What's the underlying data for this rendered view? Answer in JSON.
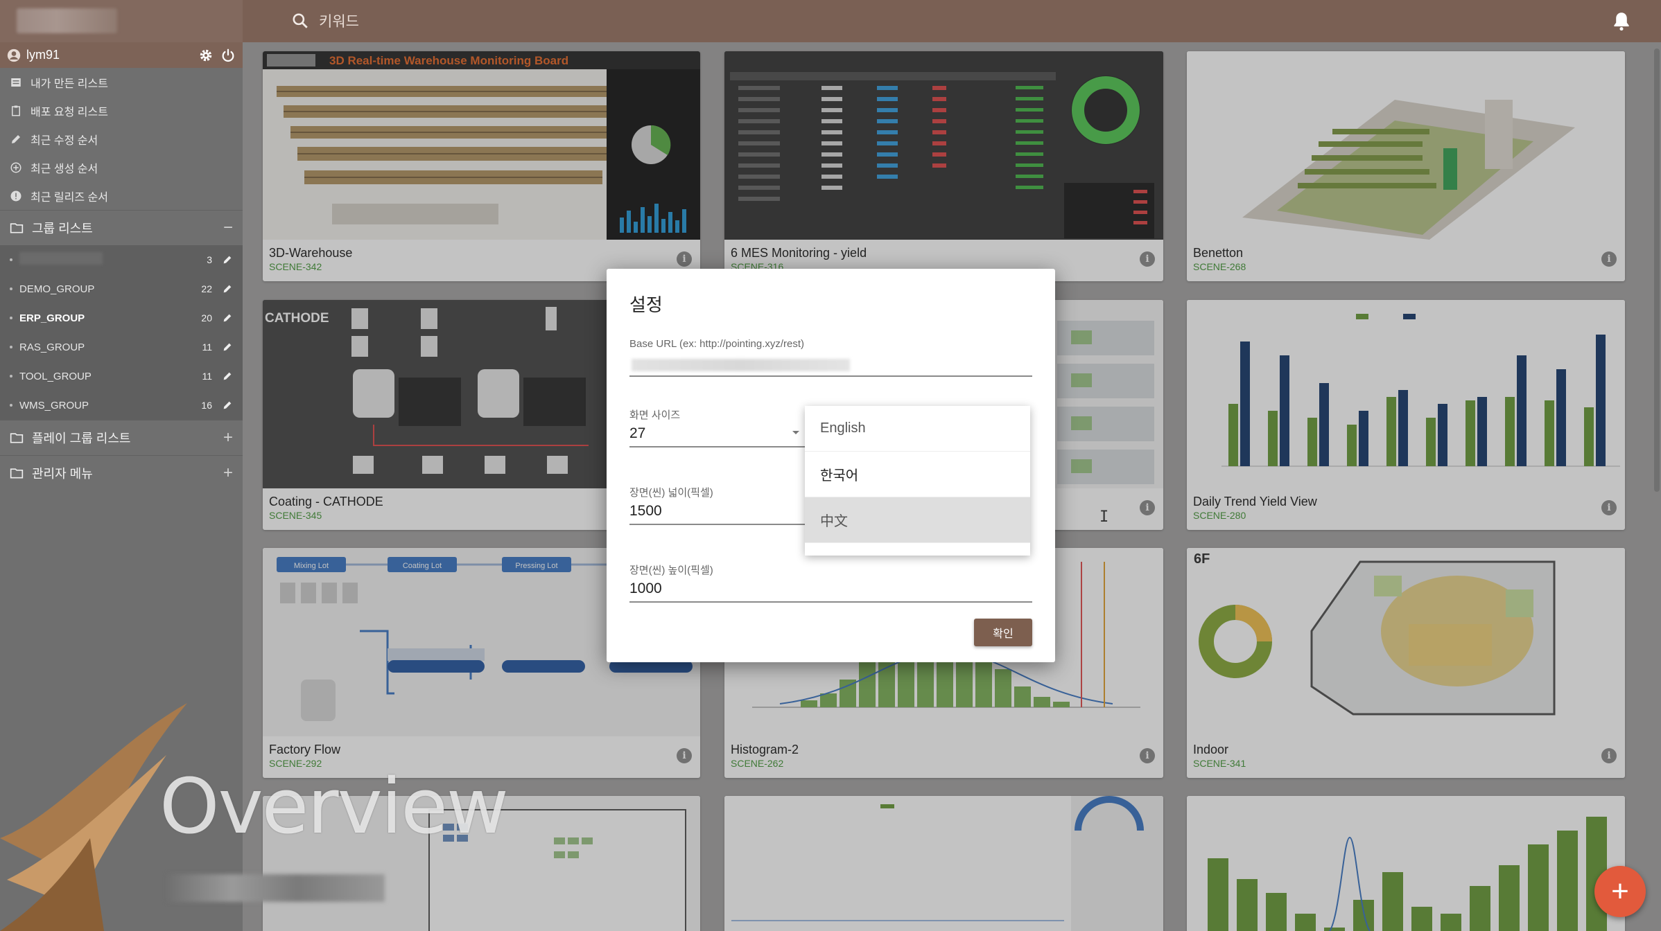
{
  "search": {
    "placeholder": "키워드"
  },
  "user": {
    "name": "lym91"
  },
  "menu": [
    {
      "label": "내가 만든 리스트",
      "icon": "list-icon"
    },
    {
      "label": "배포 요청 리스트",
      "icon": "clipboard-icon"
    },
    {
      "label": "최근 수정 순서",
      "icon": "pencil-icon"
    },
    {
      "label": "최근 생성 순서",
      "icon": "plus-circle-icon"
    },
    {
      "label": "최근 릴리즈 순서",
      "icon": "alert-circle-icon"
    }
  ],
  "group_section": {
    "label": "그룹 리스트",
    "control": "−"
  },
  "groups": [
    {
      "name": "",
      "count": "3"
    },
    {
      "name": "DEMO_GROUP",
      "count": "22"
    },
    {
      "name": "ERP_GROUP",
      "count": "20"
    },
    {
      "name": "RAS_GROUP",
      "count": "11"
    },
    {
      "name": "TOOL_GROUP",
      "count": "11"
    },
    {
      "name": "WMS_GROUP",
      "count": "16"
    }
  ],
  "play_group_section": {
    "label": "플레이 그룹 리스트",
    "control": "+"
  },
  "admin_section": {
    "label": "관리자 메뉴",
    "control": "+"
  },
  "cards": [
    {
      "title": "3D-Warehouse",
      "code": "SCENE-342",
      "thumb_label": "3D Real-time Warehouse Monitoring Board"
    },
    {
      "title": "6 MES Monitoring - yield",
      "code": "SCENE-316"
    },
    {
      "title": "Benetton",
      "code": "SCENE-268"
    },
    {
      "title": "Coating - CATHODE",
      "code": "SCENE-345",
      "thumb_label": "CATHODE"
    },
    {
      "title": "",
      "code": ""
    },
    {
      "title": "Daily Trend Yield View",
      "code": "SCENE-280"
    },
    {
      "title": "Factory Flow",
      "code": "SCENE-292"
    },
    {
      "title": "Histogram-2",
      "code": "SCENE-262"
    },
    {
      "title": "Indoor",
      "code": "SCENE-341"
    }
  ],
  "flow_labels": [
    "Mixing Lot",
    "Coating Lot",
    "Pressing Lot"
  ],
  "dialog": {
    "title": "설정",
    "base_url_label": "Base URL (ex: http://pointing.xyz/rest)",
    "screen_size_label": "화면 사이즈",
    "screen_size_value": "27",
    "width_label": "장면(씬) 넓이(픽셀)",
    "width_value": "1500",
    "height_label": "장면(씬) 높이(픽셀)",
    "height_value": "1000",
    "confirm_label": "확인",
    "language_options": [
      "English",
      "한국어",
      "中文"
    ]
  },
  "overlay": {
    "text": "Overview"
  },
  "fab": {
    "label": "+"
  },
  "colors": {
    "brand": "#7a6054",
    "accent": "#4a9a3e",
    "fab": "#e25a3c",
    "bar_green": "#6b9b3c",
    "bar_navy": "#1c3d6e"
  }
}
